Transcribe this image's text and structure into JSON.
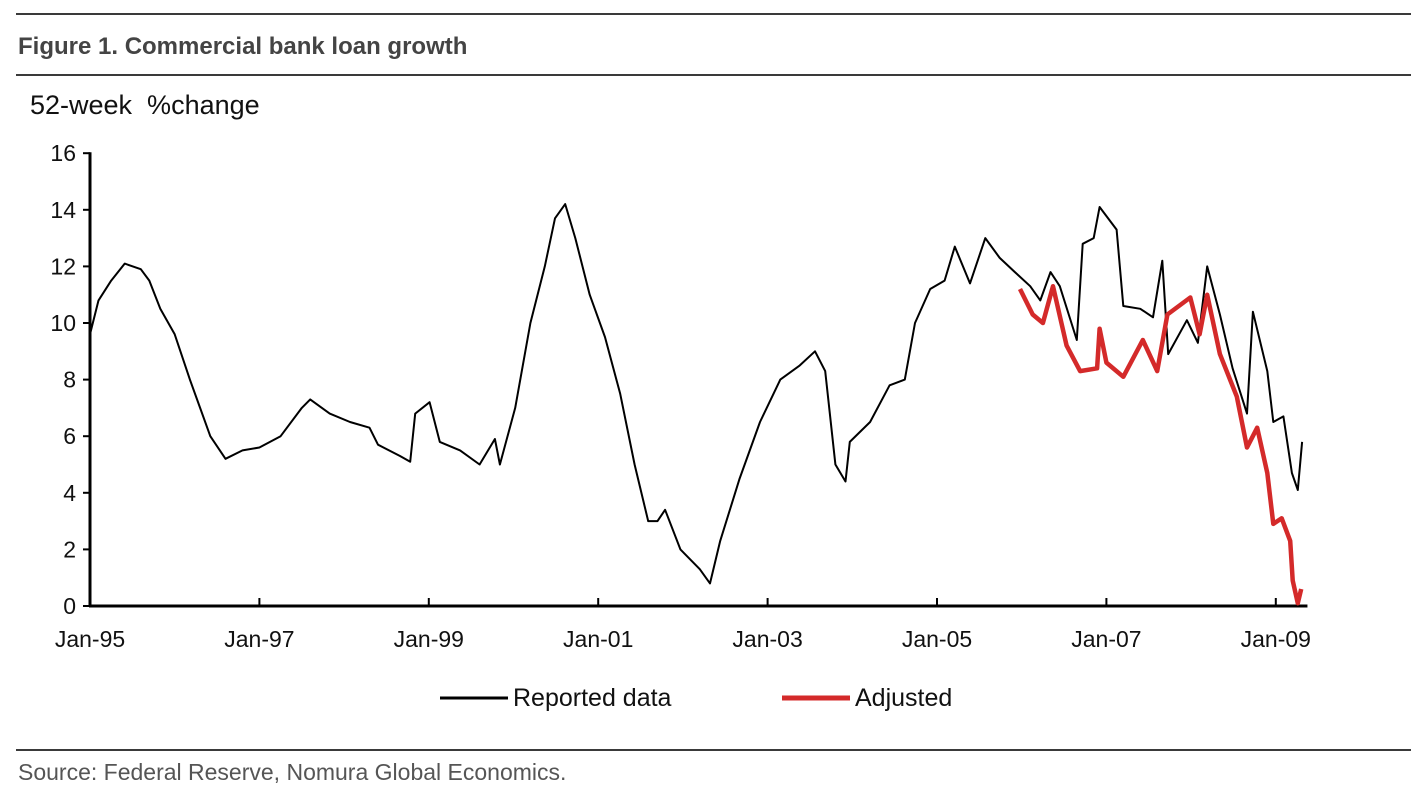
{
  "title": "Figure 1. Commercial bank loan growth",
  "source": "Source: Federal Reserve, Nomura Global Economics.",
  "colors": {
    "reported": "#000000",
    "adjusted": "#d42a2a"
  },
  "chart_data": {
    "type": "line",
    "title": "Figure 1. Commercial bank loan growth",
    "ylabel": "52-week  %change",
    "xlabel": "",
    "ylim": [
      0,
      16
    ],
    "xlim": [
      1995.0,
      2009.35
    ],
    "yticks": [
      "0",
      "2",
      "4",
      "6",
      "8",
      "10",
      "12",
      "14",
      "16"
    ],
    "xticks": [
      {
        "label": "Jan-95",
        "x": 1995
      },
      {
        "label": "Jan-97",
        "x": 1997
      },
      {
        "label": "Jan-99",
        "x": 1999
      },
      {
        "label": "Jan-01",
        "x": 2001
      },
      {
        "label": "Jan-03",
        "x": 2003
      },
      {
        "label": "Jan-05",
        "x": 2005
      },
      {
        "label": "Jan-07",
        "x": 2007
      },
      {
        "label": "Jan-09",
        "x": 2009
      }
    ],
    "grid": false,
    "legend": "bottom-center",
    "series": [
      {
        "name": "Reported data",
        "points": [
          [
            1995.0,
            9.6
          ],
          [
            1995.1,
            10.8
          ],
          [
            1995.25,
            11.5
          ],
          [
            1995.41,
            12.1
          ],
          [
            1995.6,
            11.9
          ],
          [
            1995.7,
            11.5
          ],
          [
            1995.83,
            10.5
          ],
          [
            1996.0,
            9.6
          ],
          [
            1996.18,
            8.0
          ],
          [
            1996.3,
            7.0
          ],
          [
            1996.42,
            6.0
          ],
          [
            1996.6,
            5.2
          ],
          [
            1996.8,
            5.5
          ],
          [
            1997.0,
            5.6
          ],
          [
            1997.25,
            6.0
          ],
          [
            1997.5,
            7.0
          ],
          [
            1997.6,
            7.3
          ],
          [
            1997.83,
            6.8
          ],
          [
            1998.07,
            6.5
          ],
          [
            1998.3,
            6.3
          ],
          [
            1998.4,
            5.7
          ],
          [
            1998.66,
            5.3
          ],
          [
            1998.78,
            5.1
          ],
          [
            1998.84,
            6.8
          ],
          [
            1999.01,
            7.2
          ],
          [
            1999.13,
            5.8
          ],
          [
            1999.37,
            5.5
          ],
          [
            1999.6,
            5.0
          ],
          [
            1999.78,
            5.9
          ],
          [
            1999.84,
            5.0
          ],
          [
            2000.02,
            7.0
          ],
          [
            2000.2,
            10.0
          ],
          [
            2000.37,
            12.0
          ],
          [
            2000.49,
            13.7
          ],
          [
            2000.61,
            14.2
          ],
          [
            2000.73,
            13.0
          ],
          [
            2000.9,
            11.0
          ],
          [
            2001.08,
            9.5
          ],
          [
            2001.26,
            7.5
          ],
          [
            2001.43,
            5.0
          ],
          [
            2001.59,
            3.0
          ],
          [
            2001.7,
            3.0
          ],
          [
            2001.79,
            3.4
          ],
          [
            2001.97,
            2.0
          ],
          [
            2002.2,
            1.3
          ],
          [
            2002.32,
            0.8
          ],
          [
            2002.44,
            2.3
          ],
          [
            2002.67,
            4.5
          ],
          [
            2002.91,
            6.5
          ],
          [
            2003.15,
            8.0
          ],
          [
            2003.38,
            8.5
          ],
          [
            2003.56,
            9.0
          ],
          [
            2003.68,
            8.3
          ],
          [
            2003.8,
            5.0
          ],
          [
            2003.92,
            4.4
          ],
          [
            2003.97,
            5.8
          ],
          [
            2004.21,
            6.5
          ],
          [
            2004.44,
            7.8
          ],
          [
            2004.62,
            8.0
          ],
          [
            2004.74,
            10.0
          ],
          [
            2004.92,
            11.2
          ],
          [
            2005.09,
            11.5
          ],
          [
            2005.21,
            12.7
          ],
          [
            2005.39,
            11.4
          ],
          [
            2005.57,
            13.0
          ],
          [
            2005.74,
            12.3
          ],
          [
            2005.92,
            11.8
          ],
          [
            2006.1,
            11.3
          ],
          [
            2006.22,
            10.8
          ],
          [
            2006.34,
            11.8
          ],
          [
            2006.45,
            11.3
          ],
          [
            2006.65,
            9.4
          ],
          [
            2006.72,
            12.8
          ],
          [
            2006.85,
            13.0
          ],
          [
            2006.92,
            14.1
          ],
          [
            2007.12,
            13.3
          ],
          [
            2007.2,
            10.6
          ],
          [
            2007.4,
            10.5
          ],
          [
            2007.55,
            10.2
          ],
          [
            2007.66,
            12.2
          ],
          [
            2007.73,
            8.9
          ],
          [
            2007.95,
            10.1
          ],
          [
            2008.08,
            9.3
          ],
          [
            2008.19,
            12.0
          ],
          [
            2008.34,
            10.3
          ],
          [
            2008.49,
            8.4
          ],
          [
            2008.66,
            6.8
          ],
          [
            2008.73,
            10.4
          ],
          [
            2008.9,
            8.3
          ],
          [
            2008.97,
            6.5
          ],
          [
            2009.09,
            6.7
          ],
          [
            2009.19,
            4.7
          ],
          [
            2009.26,
            4.1
          ],
          [
            2009.31,
            5.8
          ]
        ]
      },
      {
        "name": "Adjusted",
        "points": [
          [
            2005.98,
            11.2
          ],
          [
            2006.13,
            10.3
          ],
          [
            2006.25,
            10.0
          ],
          [
            2006.37,
            11.3
          ],
          [
            2006.53,
            9.2
          ],
          [
            2006.69,
            8.3
          ],
          [
            2006.89,
            8.4
          ],
          [
            2006.92,
            9.8
          ],
          [
            2007.0,
            8.6
          ],
          [
            2007.2,
            8.1
          ],
          [
            2007.43,
            9.4
          ],
          [
            2007.6,
            8.3
          ],
          [
            2007.72,
            10.3
          ],
          [
            2007.99,
            10.9
          ],
          [
            2008.1,
            9.6
          ],
          [
            2008.19,
            11.0
          ],
          [
            2008.34,
            8.9
          ],
          [
            2008.54,
            7.4
          ],
          [
            2008.66,
            5.6
          ],
          [
            2008.78,
            6.3
          ],
          [
            2008.9,
            4.7
          ],
          [
            2008.97,
            2.9
          ],
          [
            2009.07,
            3.1
          ],
          [
            2009.17,
            2.3
          ],
          [
            2009.2,
            0.9
          ],
          [
            2009.26,
            0.1
          ],
          [
            2009.3,
            0.6
          ]
        ]
      }
    ]
  }
}
